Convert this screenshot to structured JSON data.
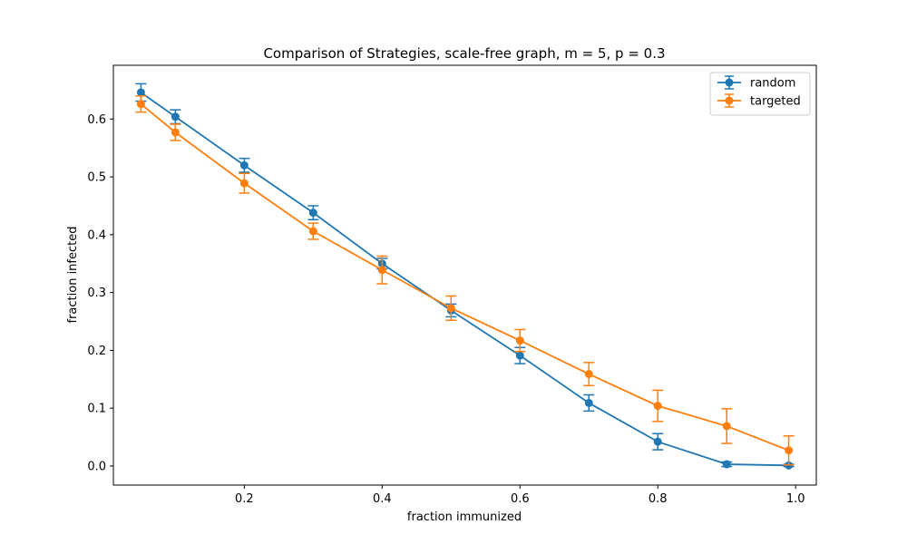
{
  "chart_data": {
    "type": "line",
    "title": "Comparison of Strategies, scale-free graph, m = 5, p = 0.3",
    "xlabel": "fraction immunized",
    "ylabel": "fraction infected",
    "xlim": [
      0.01,
      1.03
    ],
    "ylim": [
      -0.033,
      0.693
    ],
    "xticks": [
      0.2,
      0.4,
      0.6,
      0.8,
      1.0
    ],
    "xtick_labels": [
      "0.2",
      "0.4",
      "0.6",
      "0.8",
      "1.0"
    ],
    "yticks": [
      0.0,
      0.1,
      0.2,
      0.3,
      0.4,
      0.5,
      0.6
    ],
    "ytick_labels": [
      "0.0",
      "0.1",
      "0.2",
      "0.3",
      "0.4",
      "0.5",
      "0.6"
    ],
    "grid": false,
    "legend": "top-right",
    "series": [
      {
        "name": "random",
        "color": "#1f77b4",
        "x": [
          0.05,
          0.1,
          0.2,
          0.3,
          0.4,
          0.5,
          0.6,
          0.7,
          0.8,
          0.9,
          0.99
        ],
        "y": [
          0.646,
          0.604,
          0.52,
          0.438,
          0.35,
          0.269,
          0.191,
          0.109,
          0.042,
          0.003,
          0.001
        ],
        "err": [
          0.015,
          0.012,
          0.012,
          0.012,
          0.009,
          0.011,
          0.014,
          0.014,
          0.014,
          0.004,
          0.002
        ]
      },
      {
        "name": "targeted",
        "color": "#ff7f0e",
        "x": [
          0.05,
          0.1,
          0.2,
          0.3,
          0.4,
          0.5,
          0.6,
          0.7,
          0.8,
          0.9,
          0.99
        ],
        "y": [
          0.626,
          0.577,
          0.489,
          0.406,
          0.339,
          0.273,
          0.217,
          0.159,
          0.104,
          0.069,
          0.027
        ],
        "err": [
          0.014,
          0.014,
          0.017,
          0.014,
          0.024,
          0.021,
          0.019,
          0.02,
          0.027,
          0.03,
          0.025
        ]
      }
    ]
  }
}
